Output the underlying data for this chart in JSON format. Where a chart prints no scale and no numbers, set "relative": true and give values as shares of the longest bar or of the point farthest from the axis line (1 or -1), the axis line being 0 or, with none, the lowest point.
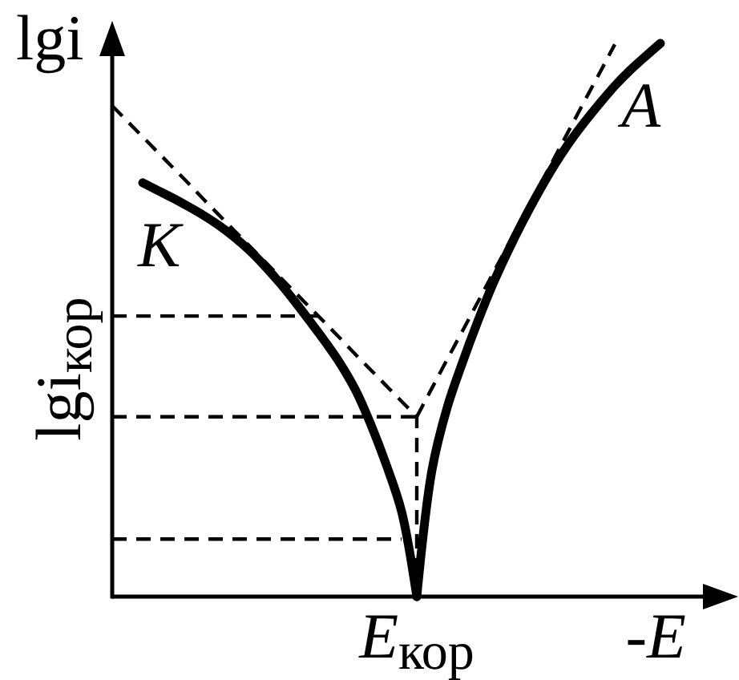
{
  "chart_data": {
    "type": "line",
    "relative": true,
    "xlabel": "-E",
    "ylabel": "lgi",
    "categories": [
      null,
      null,
      null,
      null,
      null,
      null,
      null,
      null,
      null,
      null,
      null,
      null,
      null,
      null,
      null,
      null,
      null,
      null,
      null,
      null,
      null,
      null,
      null,
      null,
      null,
      null,
      null,
      null,
      null,
      null,
      null,
      null,
      null,
      null,
      null,
      null,
      null,
      null,
      null,
      null
    ],
    "annotations": [
      "E$_{кор}$"
    ],
    "ref_lines": [
      {
        "axis": "y",
        "value": 0.325,
        "label": "lgi$_{кор}$",
        "color": "#000000",
        "line_style": "dashed"
      }
    ],
    "series": [
      {
        "name": "K",
        "color": "#000000",
        "line_style": "solid",
        "values": [
          null,
          null,
          0.748,
          0.734,
          0.72,
          0.705,
          0.689,
          0.671,
          0.65,
          0.626,
          0.598,
          0.567,
          0.533,
          0.497,
          0.46,
          0.42,
          0.372,
          0.31,
          0.238,
          0.154,
          0,
          null,
          null,
          null,
          null,
          null,
          null,
          null,
          null,
          null,
          null,
          null,
          null,
          null,
          null,
          null,
          null,
          null,
          null,
          null
        ]
      },
      {
        "name": "A",
        "color": "#000000",
        "line_style": "solid",
        "values": [
          null,
          null,
          null,
          null,
          null,
          null,
          null,
          null,
          null,
          null,
          null,
          null,
          null,
          null,
          null,
          null,
          null,
          null,
          null,
          null,
          0,
          0.229,
          0.342,
          0.423,
          0.497,
          0.565,
          0.625,
          0.68,
          0.731,
          0.778,
          0.82,
          0.857,
          0.891,
          0.923,
          0.951,
          0.976,
          1,
          null,
          null,
          null
        ]
      },
      {
        "color": "#000000",
        "line_style": "dashed",
        "values": [
          0.887,
          0.859,
          0.831,
          0.803,
          0.775,
          0.747,
          0.718,
          0.69,
          0.662,
          0.634,
          0.606,
          0.578,
          0.55,
          0.522,
          0.494,
          0.466,
          0.437,
          0.409,
          0.381,
          0.353,
          0.325,
          null,
          null,
          null,
          null,
          null,
          null,
          null,
          null,
          null,
          null,
          null,
          null,
          null,
          null,
          null,
          null,
          null,
          null,
          null
        ]
      },
      {
        "color": "#000000",
        "line_style": "dashed",
        "values": [
          null,
          null,
          null,
          null,
          null,
          null,
          null,
          null,
          null,
          null,
          null,
          null,
          null,
          null,
          null,
          null,
          null,
          null,
          null,
          null,
          0.325,
          0.377,
          0.429,
          0.48,
          0.532,
          0.584,
          0.636,
          0.688,
          0.739,
          0.791,
          0.843,
          0.895,
          0.946,
          0.998,
          null,
          null,
          null,
          null,
          null,
          null
        ]
      },
      {
        "color": "#000000",
        "line_style": "dashed",
        "values": [
          0.507,
          0.507,
          0.507,
          0.507,
          0.507,
          0.507,
          0.507,
          0.507,
          0.507,
          0.507,
          0.507,
          0.507,
          0.507,
          0.507,
          0.507,
          null,
          null,
          null,
          null,
          null,
          null,
          null,
          null,
          null,
          null,
          null,
          null,
          null,
          null,
          null,
          null,
          null,
          null,
          null,
          null,
          null,
          null,
          null,
          null,
          null
        ]
      },
      {
        "color": "#000000",
        "line_style": "dashed",
        "values": [
          0.104,
          0.104,
          0.104,
          0.104,
          0.104,
          0.104,
          0.104,
          0.104,
          0.104,
          0.104,
          0.104,
          0.104,
          0.104,
          0.104,
          0.104,
          0.104,
          0.104,
          0.104,
          0.104,
          0.104,
          null,
          null,
          null,
          null,
          null,
          null,
          null,
          null,
          null,
          null,
          null,
          null,
          null,
          null,
          null,
          null,
          null,
          null,
          null,
          null
        ]
      }
    ]
  }
}
